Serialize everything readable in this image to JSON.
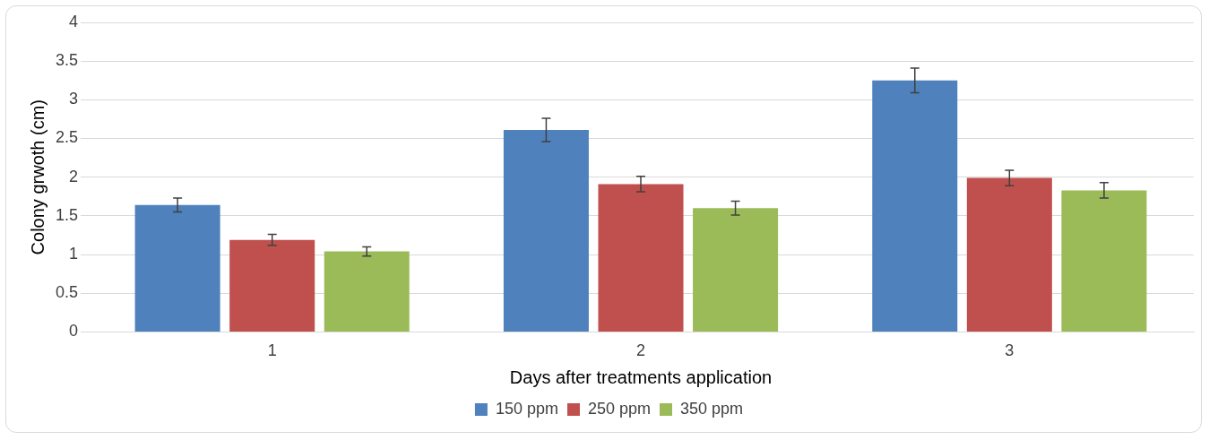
{
  "chart_data": {
    "type": "bar",
    "xlabel": "Days after treatments application",
    "ylabel": "Colony grwoth (cm)",
    "categories": [
      "1",
      "2",
      "3"
    ],
    "series": [
      {
        "name": "150 ppm",
        "color": "#4f81bd",
        "values": [
          1.64,
          2.61,
          3.25
        ],
        "errors": [
          0.09,
          0.15,
          0.16
        ]
      },
      {
        "name": "250 ppm",
        "color": "#c0504d",
        "values": [
          1.19,
          1.91,
          1.99
        ],
        "errors": [
          0.07,
          0.1,
          0.1
        ]
      },
      {
        "name": "350 ppm",
        "color": "#9bbb59",
        "values": [
          1.04,
          1.6,
          1.83
        ],
        "errors": [
          0.06,
          0.09,
          0.1
        ]
      }
    ],
    "ylim": [
      0,
      4
    ],
    "yticks": [
      0,
      0.5,
      1,
      1.5,
      2,
      2.5,
      3,
      3.5,
      4
    ],
    "grid": "y",
    "legend": "bottom"
  }
}
